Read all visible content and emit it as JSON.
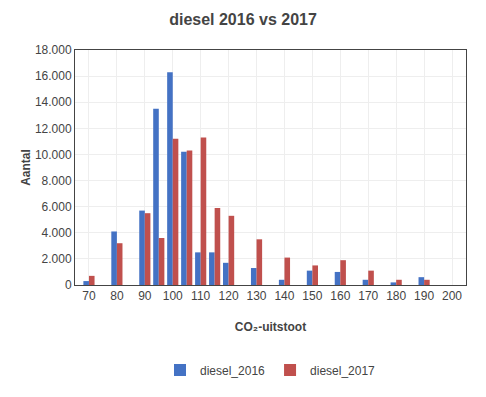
{
  "chart_data": {
    "type": "bar",
    "title": "diesel 2016 vs 2017",
    "xlabel": "CO₂-uitstoot",
    "ylabel": "Aantal",
    "x": [
      70,
      80,
      90,
      95,
      100,
      105,
      110,
      115,
      120,
      130,
      140,
      150,
      160,
      170,
      180,
      190
    ],
    "series": [
      {
        "name": "diesel_2016",
        "color": "#4472C4",
        "values": [
          300,
          4100,
          5700,
          13500,
          16300,
          10200,
          2500,
          2500,
          1700,
          1300,
          400,
          1100,
          1000,
          400,
          200,
          600
        ]
      },
      {
        "name": "diesel_2017",
        "color": "#C0504D",
        "values": [
          700,
          3200,
          5500,
          3600,
          11200,
          10300,
          11300,
          5900,
          5300,
          3500,
          2100,
          1500,
          1900,
          1100,
          400,
          400
        ]
      }
    ],
    "xlim": [
      65,
      205
    ],
    "xticks": [
      70,
      80,
      90,
      100,
      110,
      120,
      130,
      140,
      150,
      160,
      170,
      180,
      190,
      200
    ],
    "ylim": [
      0,
      18000
    ],
    "yticks": [
      0,
      {
        "value": 2000,
        "label": "2.000"
      },
      {
        "value": 4000,
        "label": "4.000"
      },
      {
        "value": 6000,
        "label": "6.000"
      },
      {
        "value": 8000,
        "label": "8.000"
      },
      {
        "value": 10000,
        "label": "10.000"
      },
      {
        "value": 12000,
        "label": "12.000"
      },
      {
        "value": 14000,
        "label": "14.000"
      },
      {
        "value": 16000,
        "label": "16.000"
      },
      {
        "value": 18000,
        "label": "18.000"
      }
    ],
    "grid": true,
    "legend": "bottom"
  }
}
